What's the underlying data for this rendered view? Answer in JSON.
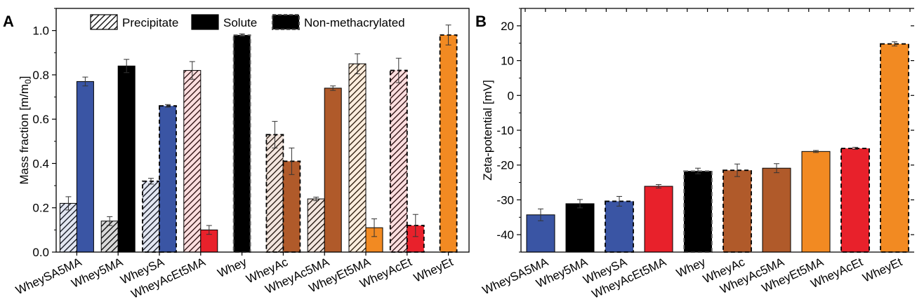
{
  "colors": {
    "SA": "#3a55a4",
    "plain": "#000000",
    "AcEt": "#e8212b",
    "Ac": "#b05a2a",
    "Et": "#f28a22"
  },
  "chart_data": [
    {
      "type": "bar",
      "panel_label": "A",
      "ylabel": "Mass fraction [m/m",
      "ylabel_sub": "0",
      "ylabel_end": "]",
      "ylim": [
        0,
        1.1
      ],
      "yticks": [
        0.0,
        0.2,
        0.4,
        0.6,
        0.8,
        1.0
      ],
      "ytick_labels": [
        "0.0",
        "0.2",
        "0.4",
        "0.6",
        "0.8",
        "1.0"
      ],
      "legend": {
        "placement": "top",
        "items": [
          {
            "label": "Precipitate",
            "style": "hatched"
          },
          {
            "label": "Solute",
            "style": "solid"
          },
          {
            "label": "Non-methacrylated",
            "style": "dashed"
          }
        ]
      },
      "categories": [
        "WheySA5MA",
        "Whey5MA",
        "WheySA",
        "WheyAcEt5MA",
        "Whey",
        "WheyAc",
        "WheyAc5MA",
        "WheyEt5MA",
        "WheyAcEt",
        "WheyEt"
      ],
      "groups": [
        {
          "category": "WheySA5MA",
          "color": "SA",
          "dashed": false,
          "bars": [
            {
              "kind": "precipitate",
              "value": 0.22,
              "error": 0.03
            },
            {
              "kind": "solute",
              "value": 0.77,
              "error": 0.02
            }
          ]
        },
        {
          "category": "Whey5MA",
          "color": "plain",
          "dashed": false,
          "bars": [
            {
              "kind": "precipitate",
              "value": 0.14,
              "error": 0.02
            },
            {
              "kind": "solute",
              "value": 0.84,
              "error": 0.03
            }
          ]
        },
        {
          "category": "WheySA",
          "color": "SA",
          "dashed": true,
          "bars": [
            {
              "kind": "precipitate",
              "value": 0.32,
              "error": 0.013
            },
            {
              "kind": "solute",
              "value": 0.66,
              "error": 0.006
            }
          ]
        },
        {
          "category": "WheyAcEt5MA",
          "color": "AcEt",
          "dashed": false,
          "bars": [
            {
              "kind": "precipitate",
              "value": 0.82,
              "error": 0.04
            },
            {
              "kind": "solute",
              "value": 0.1,
              "error": 0.02
            }
          ]
        },
        {
          "category": "Whey",
          "color": "plain",
          "dashed": true,
          "bars": [
            {
              "kind": "solute",
              "value": 0.98,
              "error": 0.005
            }
          ]
        },
        {
          "category": "WheyAc",
          "color": "Ac",
          "dashed": true,
          "bars": [
            {
              "kind": "precipitate",
              "value": 0.53,
              "error": 0.06
            },
            {
              "kind": "solute",
              "value": 0.41,
              "error": 0.06
            }
          ]
        },
        {
          "category": "WheyAc5MA",
          "color": "Ac",
          "dashed": false,
          "bars": [
            {
              "kind": "precipitate",
              "value": 0.24,
              "error": 0.008
            },
            {
              "kind": "solute",
              "value": 0.74,
              "error": 0.01
            }
          ]
        },
        {
          "category": "WheyEt5MA",
          "color": "Et",
          "dashed": false,
          "bars": [
            {
              "kind": "precipitate",
              "value": 0.85,
              "error": 0.045
            },
            {
              "kind": "solute",
              "value": 0.11,
              "error": 0.04
            }
          ]
        },
        {
          "category": "WheyAcEt",
          "color": "AcEt",
          "dashed": true,
          "bars": [
            {
              "kind": "precipitate",
              "value": 0.82,
              "error": 0.055
            },
            {
              "kind": "solute",
              "value": 0.12,
              "error": 0.05
            }
          ]
        },
        {
          "category": "WheyEt",
          "color": "Et",
          "dashed": true,
          "bars": [
            {
              "kind": "solute",
              "value": 0.98,
              "error": 0.045
            }
          ]
        }
      ]
    },
    {
      "type": "bar",
      "panel_label": "B",
      "ylabel": "Zeta-potential [mV]",
      "ylim": [
        -45,
        25
      ],
      "yticks": [
        -40,
        -30,
        -20,
        -10,
        0,
        10,
        20
      ],
      "ytick_labels": [
        "-40",
        "-30",
        "-20",
        "-10",
        "0",
        "10",
        "20"
      ],
      "categories": [
        "WheySA5MA",
        "Whey5MA",
        "WheySA",
        "WheyAcEt5MA",
        "Whey",
        "WheyAc",
        "WheyAc5MA",
        "WheyEt5MA",
        "WheyAcEt",
        "WheyEt"
      ],
      "bars": [
        {
          "category": "WheySA5MA",
          "value": -34.3,
          "error": 1.7,
          "color": "SA",
          "dashed": false
        },
        {
          "category": "Whey5MA",
          "value": -31.1,
          "error": 1.2,
          "color": "plain",
          "dashed": false
        },
        {
          "category": "WheySA",
          "value": -30.4,
          "error": 1.4,
          "color": "SA",
          "dashed": true
        },
        {
          "category": "WheyAcEt5MA",
          "value": -26.1,
          "error": 0.5,
          "color": "AcEt",
          "dashed": false
        },
        {
          "category": "Whey",
          "value": -21.7,
          "error": 0.8,
          "color": "plain",
          "dashed": true
        },
        {
          "category": "WheyAc",
          "value": -21.5,
          "error": 1.8,
          "color": "Ac",
          "dashed": true
        },
        {
          "category": "WheyAc5MA",
          "value": -20.9,
          "error": 1.3,
          "color": "Ac",
          "dashed": false
        },
        {
          "category": "WheyEt5MA",
          "value": -16.1,
          "error": 0.3,
          "color": "Et",
          "dashed": false
        },
        {
          "category": "WheyAcEt",
          "value": -15.2,
          "error": 0.3,
          "color": "AcEt",
          "dashed": true
        },
        {
          "category": "WheyEt",
          "value": 14.8,
          "error": 0.6,
          "color": "Et",
          "dashed": true
        }
      ]
    }
  ]
}
